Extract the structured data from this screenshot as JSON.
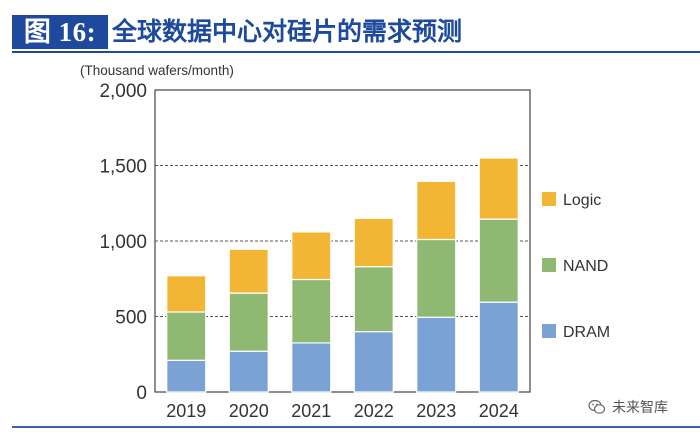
{
  "header": {
    "figure_label": "图 16:",
    "title": "全球数据中心对硅片的需求预测"
  },
  "watermark": {
    "text": "未来智库",
    "icon": "wechat-icon"
  },
  "colors": {
    "DRAM": "#7aa2d4",
    "NAND": "#8fb872",
    "Logic": "#f3b534",
    "header_blue": "#1d4a9c"
  },
  "chart_data": {
    "type": "bar",
    "stacked": true,
    "unit_label": "(Thousand wafers/month)",
    "categories": [
      "2019",
      "2020",
      "2021",
      "2022",
      "2023",
      "2024"
    ],
    "series": [
      {
        "name": "DRAM",
        "values": [
          210,
          270,
          325,
          400,
          495,
          595
        ]
      },
      {
        "name": "NAND",
        "values": [
          320,
          385,
          420,
          430,
          515,
          550
        ]
      },
      {
        "name": "Logic",
        "values": [
          240,
          290,
          315,
          320,
          385,
          405
        ]
      }
    ],
    "y_ticks": [
      "0",
      "500",
      "1,000",
      "1,500",
      "2,000"
    ],
    "y_tick_values": [
      0,
      500,
      1000,
      1500,
      2000
    ],
    "ylim": [
      0,
      2000
    ],
    "grid": "dashed",
    "legend": {
      "position": "right",
      "order": [
        "Logic",
        "NAND",
        "DRAM"
      ]
    }
  }
}
